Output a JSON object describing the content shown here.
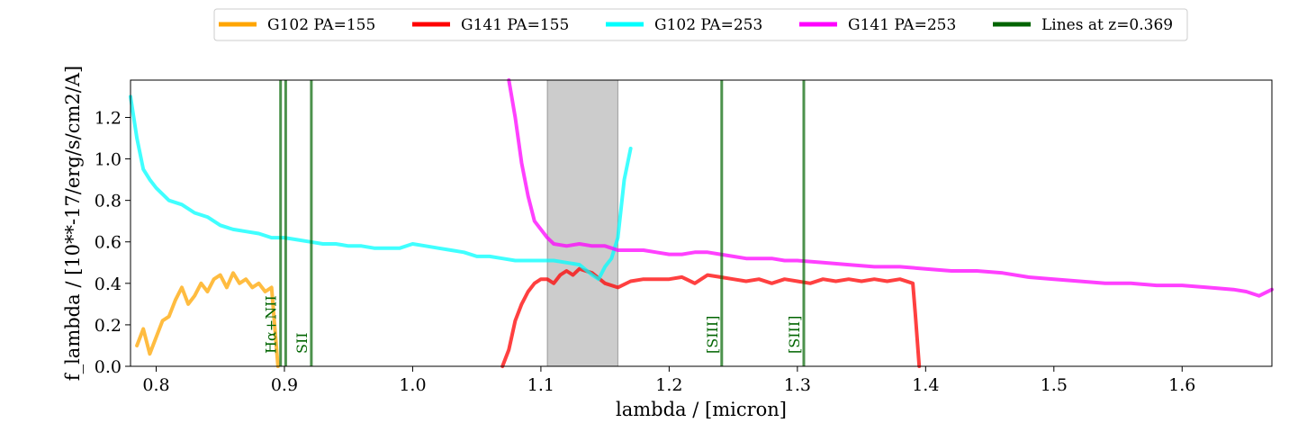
{
  "chart_data": {
    "type": "line",
    "xlabel": "lambda / [micron]",
    "ylabel": "f_lambda / [10**-17/erg/s/cm2/A]",
    "xlim": [
      0.78,
      1.67
    ],
    "ylim": [
      0.0,
      1.38
    ],
    "xticks": [
      "0.8",
      "0.9",
      "1.0",
      "1.1",
      "1.2",
      "1.3",
      "1.4",
      "1.5",
      "1.6"
    ],
    "yticks": [
      "0.0",
      "0.2",
      "0.4",
      "0.6",
      "0.8",
      "1.0",
      "1.2"
    ],
    "legend_position": "top-center",
    "shaded_region": {
      "x": [
        1.105,
        1.16
      ],
      "color": "#999999"
    },
    "series": [
      {
        "name": "G102 PA=155",
        "color": "#ffa500",
        "x": [
          0.785,
          0.79,
          0.795,
          0.8,
          0.805,
          0.81,
          0.815,
          0.82,
          0.825,
          0.83,
          0.835,
          0.84,
          0.845,
          0.85,
          0.855,
          0.86,
          0.865,
          0.87,
          0.875,
          0.88,
          0.885,
          0.89,
          0.895
        ],
        "y": [
          0.1,
          0.18,
          0.06,
          0.14,
          0.22,
          0.24,
          0.32,
          0.38,
          0.3,
          0.34,
          0.4,
          0.36,
          0.42,
          0.44,
          0.38,
          0.45,
          0.4,
          0.42,
          0.38,
          0.4,
          0.36,
          0.38,
          0.0
        ]
      },
      {
        "name": "G141 PA=155",
        "color": "#ff0000",
        "x": [
          1.07,
          1.075,
          1.08,
          1.085,
          1.09,
          1.095,
          1.1,
          1.105,
          1.11,
          1.115,
          1.12,
          1.125,
          1.13,
          1.14,
          1.15,
          1.16,
          1.17,
          1.18,
          1.19,
          1.2,
          1.21,
          1.22,
          1.23,
          1.24,
          1.25,
          1.26,
          1.27,
          1.28,
          1.29,
          1.3,
          1.31,
          1.32,
          1.33,
          1.34,
          1.35,
          1.36,
          1.37,
          1.38,
          1.39,
          1.392,
          1.395
        ],
        "y": [
          0.0,
          0.08,
          0.22,
          0.3,
          0.36,
          0.4,
          0.42,
          0.42,
          0.4,
          0.44,
          0.46,
          0.44,
          0.47,
          0.45,
          0.4,
          0.38,
          0.41,
          0.42,
          0.42,
          0.42,
          0.43,
          0.4,
          0.44,
          0.43,
          0.42,
          0.41,
          0.42,
          0.4,
          0.42,
          0.41,
          0.4,
          0.42,
          0.41,
          0.42,
          0.41,
          0.42,
          0.41,
          0.42,
          0.4,
          0.25,
          0.0
        ]
      },
      {
        "name": "G102 PA=253",
        "color": "#00ffff",
        "x": [
          0.78,
          0.785,
          0.79,
          0.795,
          0.8,
          0.81,
          0.82,
          0.83,
          0.84,
          0.85,
          0.86,
          0.87,
          0.88,
          0.89,
          0.9,
          0.91,
          0.92,
          0.93,
          0.94,
          0.95,
          0.96,
          0.97,
          0.98,
          0.99,
          1.0,
          1.01,
          1.02,
          1.03,
          1.04,
          1.05,
          1.06,
          1.07,
          1.08,
          1.09,
          1.1,
          1.11,
          1.12,
          1.13,
          1.14,
          1.145,
          1.15,
          1.155,
          1.16,
          1.165,
          1.17
        ],
        "y": [
          1.3,
          1.1,
          0.95,
          0.9,
          0.86,
          0.8,
          0.78,
          0.74,
          0.72,
          0.68,
          0.66,
          0.65,
          0.64,
          0.62,
          0.62,
          0.61,
          0.6,
          0.59,
          0.59,
          0.58,
          0.58,
          0.57,
          0.57,
          0.57,
          0.59,
          0.58,
          0.57,
          0.56,
          0.55,
          0.53,
          0.53,
          0.52,
          0.51,
          0.51,
          0.51,
          0.51,
          0.5,
          0.49,
          0.44,
          0.42,
          0.48,
          0.52,
          0.62,
          0.9,
          1.05
        ]
      },
      {
        "name": "G141 PA=253",
        "color": "#ff00ff",
        "x": [
          1.075,
          1.08,
          1.085,
          1.09,
          1.095,
          1.1,
          1.105,
          1.11,
          1.12,
          1.13,
          1.14,
          1.15,
          1.16,
          1.17,
          1.18,
          1.19,
          1.2,
          1.21,
          1.22,
          1.23,
          1.24,
          1.25,
          1.26,
          1.27,
          1.28,
          1.29,
          1.3,
          1.32,
          1.34,
          1.36,
          1.38,
          1.4,
          1.42,
          1.44,
          1.46,
          1.48,
          1.5,
          1.52,
          1.54,
          1.56,
          1.58,
          1.6,
          1.62,
          1.64,
          1.65,
          1.66,
          1.67
        ],
        "y": [
          1.38,
          1.2,
          0.98,
          0.82,
          0.7,
          0.66,
          0.62,
          0.59,
          0.58,
          0.59,
          0.58,
          0.58,
          0.56,
          0.56,
          0.56,
          0.55,
          0.54,
          0.54,
          0.55,
          0.55,
          0.54,
          0.53,
          0.52,
          0.52,
          0.52,
          0.51,
          0.51,
          0.5,
          0.49,
          0.48,
          0.48,
          0.47,
          0.46,
          0.46,
          0.45,
          0.43,
          0.42,
          0.41,
          0.4,
          0.4,
          0.39,
          0.39,
          0.38,
          0.37,
          0.36,
          0.34,
          0.37
        ]
      },
      {
        "name": "Lines at z=0.369",
        "color": "#006400",
        "lines": [
          {
            "x": 0.897,
            "label": "Hα+NII"
          },
          {
            "x": 0.901,
            "label": ""
          },
          {
            "x": 0.921,
            "label": "SII"
          },
          {
            "x": 1.241,
            "label": "[SIII]"
          },
          {
            "x": 1.305,
            "label": "[SIII]"
          }
        ]
      }
    ]
  }
}
